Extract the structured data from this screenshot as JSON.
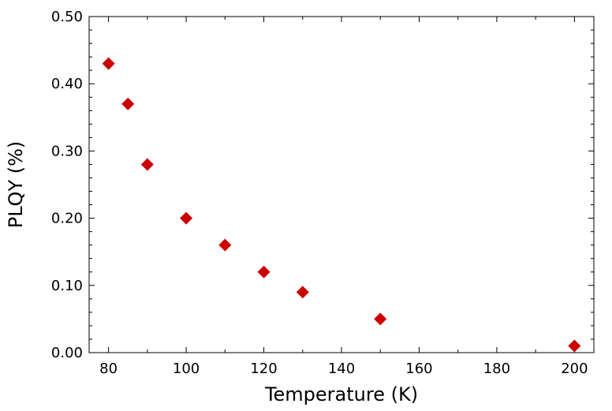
{
  "chart_data": {
    "type": "scatter",
    "xlabel": "Temperature (K)",
    "ylabel": "PLQY (%)",
    "xlim": [
      75,
      205
    ],
    "ylim": [
      0,
      0.5
    ],
    "xticks": [
      80,
      100,
      120,
      140,
      160,
      180,
      200
    ],
    "xtick_labels": [
      "80",
      "100",
      "120",
      "140",
      "160",
      "180",
      "200"
    ],
    "yticks": [
      0,
      0.1,
      0.2,
      0.3,
      0.4,
      0.5
    ],
    "ytick_labels": [
      "0.00",
      "0.10",
      "0.20",
      "0.30",
      "0.40",
      "0.50"
    ],
    "grid": false,
    "marker": "diamond",
    "marker_color": "#cc0000",
    "series": [
      {
        "x": [
          80,
          85,
          90,
          100,
          110,
          120,
          130,
          150,
          200
        ],
        "y": [
          0.43,
          0.37,
          0.28,
          0.2,
          0.16,
          0.12,
          0.09,
          0.05,
          0.01
        ]
      }
    ]
  }
}
